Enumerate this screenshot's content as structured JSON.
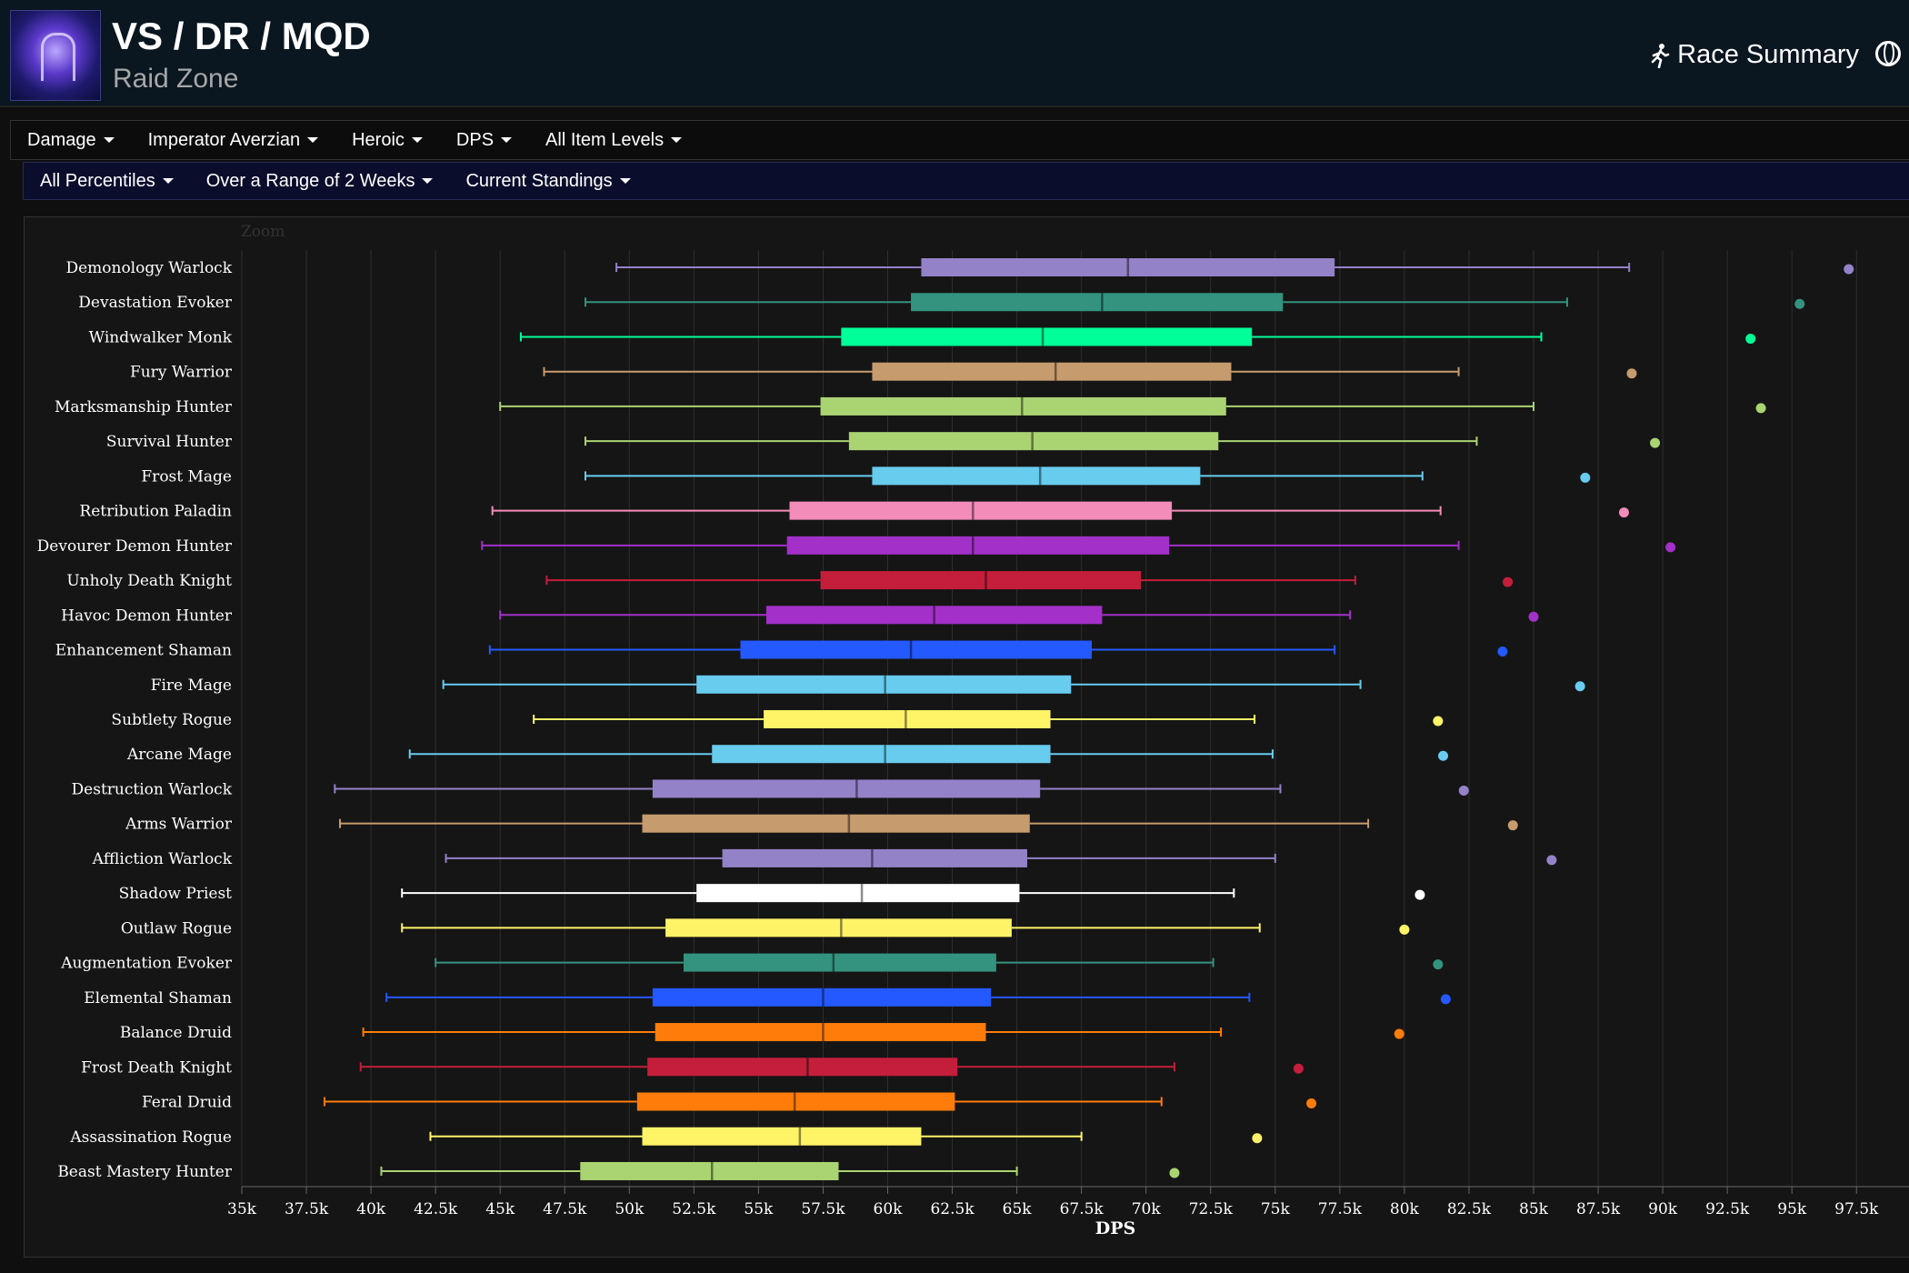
{
  "header": {
    "title": "VS / DR / MQD",
    "subtitle": "Raid Zone",
    "race_summary_label": "Race Summary",
    "zone_icon": "raid-zone-icon",
    "runner_icon": "runner-icon",
    "globe_icon": "globe-icon"
  },
  "filters": {
    "row1": [
      "Damage",
      "Imperator Averzian",
      "Heroic",
      "DPS",
      "All Item Levels"
    ],
    "row2": [
      "All Percentiles",
      "Over a Range of 2 Weeks",
      "Current Standings"
    ]
  },
  "chart_data": {
    "type": "boxplot",
    "title": "",
    "zoom_label": "Zoom",
    "xlabel": "DPS",
    "ylabel": "",
    "xlim": [
      35000,
      98500
    ],
    "x_ticks": [
      35000,
      37500,
      40000,
      42500,
      45000,
      47500,
      50000,
      52500,
      55000,
      57500,
      60000,
      62500,
      65000,
      67500,
      70000,
      72500,
      75000,
      77500,
      80000,
      82500,
      85000,
      87500,
      90000,
      92500,
      95000,
      97500
    ],
    "x_tick_labels": [
      "35k",
      "37.5k",
      "40k",
      "42.5k",
      "45k",
      "47.5k",
      "50k",
      "52.5k",
      "55k",
      "57.5k",
      "60k",
      "62.5k",
      "65k",
      "67.5k",
      "70k",
      "72.5k",
      "75k",
      "77.5k",
      "80k",
      "82.5k",
      "85k",
      "87.5k",
      "90k",
      "92.5k",
      "95k",
      "97.5k"
    ],
    "series": [
      {
        "name": "Demonology Warlock",
        "color": "#9482c9",
        "min": 49500,
        "q1": 61300,
        "median": 69300,
        "q3": 77300,
        "max": 88700,
        "outlier": 97200
      },
      {
        "name": "Devastation Evoker",
        "color": "#33937f",
        "min": 48300,
        "q1": 60900,
        "median": 68300,
        "q3": 75300,
        "max": 86300,
        "outlier": 95300
      },
      {
        "name": "Windwalker Monk",
        "color": "#00ff98",
        "min": 45800,
        "q1": 58200,
        "median": 66000,
        "q3": 74100,
        "max": 85300,
        "outlier": 93400
      },
      {
        "name": "Fury Warrior",
        "color": "#c69b6d",
        "min": 46700,
        "q1": 59400,
        "median": 66500,
        "q3": 73300,
        "max": 82100,
        "outlier": 88800
      },
      {
        "name": "Marksmanship Hunter",
        "color": "#aad372",
        "min": 45000,
        "q1": 57400,
        "median": 65200,
        "q3": 73100,
        "max": 85000,
        "outlier": 93800
      },
      {
        "name": "Survival Hunter",
        "color": "#aad372",
        "min": 48300,
        "q1": 58500,
        "median": 65600,
        "q3": 72800,
        "max": 82800,
        "outlier": 89700
      },
      {
        "name": "Frost Mage",
        "color": "#68ccef",
        "min": 48300,
        "q1": 59400,
        "median": 65900,
        "q3": 72100,
        "max": 80700,
        "outlier": 87000
      },
      {
        "name": "Retribution Paladin",
        "color": "#f48cba",
        "min": 44700,
        "q1": 56200,
        "median": 63300,
        "q3": 71000,
        "max": 81400,
        "outlier": 88500
      },
      {
        "name": "Devourer Demon Hunter",
        "color": "#a330c9",
        "min": 44300,
        "q1": 56100,
        "median": 63300,
        "q3": 70900,
        "max": 82100,
        "outlier": 90300
      },
      {
        "name": "Unholy Death Knight",
        "color": "#c41e3b",
        "min": 46800,
        "q1": 57400,
        "median": 63800,
        "q3": 69800,
        "max": 78100,
        "outlier": 84000
      },
      {
        "name": "Havoc Demon Hunter",
        "color": "#a330c9",
        "min": 45000,
        "q1": 55300,
        "median": 61800,
        "q3": 68300,
        "max": 77900,
        "outlier": 85000
      },
      {
        "name": "Enhancement Shaman",
        "color": "#2359ff",
        "min": 44600,
        "q1": 54300,
        "median": 60900,
        "q3": 67900,
        "max": 77300,
        "outlier": 83800
      },
      {
        "name": "Fire Mage",
        "color": "#68ccef",
        "min": 42800,
        "q1": 52600,
        "median": 59900,
        "q3": 67100,
        "max": 78300,
        "outlier": 86800
      },
      {
        "name": "Subtlety Rogue",
        "color": "#fff468",
        "min": 46300,
        "q1": 55200,
        "median": 60700,
        "q3": 66300,
        "max": 74200,
        "outlier": 81300
      },
      {
        "name": "Arcane Mage",
        "color": "#68ccef",
        "min": 41500,
        "q1": 53200,
        "median": 59900,
        "q3": 66300,
        "max": 74900,
        "outlier": 81500
      },
      {
        "name": "Destruction Warlock",
        "color": "#9482c9",
        "min": 38600,
        "q1": 50900,
        "median": 58800,
        "q3": 65900,
        "max": 75200,
        "outlier": 82300
      },
      {
        "name": "Arms Warrior",
        "color": "#c69b6d",
        "min": 38800,
        "q1": 50500,
        "median": 58500,
        "q3": 65500,
        "max": 78600,
        "outlier": 84200
      },
      {
        "name": "Affliction Warlock",
        "color": "#9482c9",
        "min": 42900,
        "q1": 53600,
        "median": 59400,
        "q3": 65400,
        "max": 75000,
        "outlier": 85700
      },
      {
        "name": "Shadow Priest",
        "color": "#ffffff",
        "min": 41200,
        "q1": 52600,
        "median": 59000,
        "q3": 65100,
        "max": 73400,
        "outlier": 80600
      },
      {
        "name": "Outlaw Rogue",
        "color": "#fff468",
        "min": 41200,
        "q1": 51400,
        "median": 58200,
        "q3": 64800,
        "max": 74400,
        "outlier": 80000
      },
      {
        "name": "Augmentation Evoker",
        "color": "#33937f",
        "min": 42500,
        "q1": 52100,
        "median": 57900,
        "q3": 64200,
        "max": 72600,
        "outlier": 81300
      },
      {
        "name": "Elemental Shaman",
        "color": "#2359ff",
        "min": 40600,
        "q1": 50900,
        "median": 57500,
        "q3": 64000,
        "max": 74000,
        "outlier": 81600
      },
      {
        "name": "Balance Druid",
        "color": "#ff7c0a",
        "min": 39700,
        "q1": 51000,
        "median": 57500,
        "q3": 63800,
        "max": 72900,
        "outlier": 79800
      },
      {
        "name": "Frost Death Knight",
        "color": "#c41e3b",
        "min": 39600,
        "q1": 50700,
        "median": 56900,
        "q3": 62700,
        "max": 71100,
        "outlier": 75900
      },
      {
        "name": "Feral Druid",
        "color": "#ff7c0a",
        "min": 38200,
        "q1": 50300,
        "median": 56400,
        "q3": 62600,
        "max": 70600,
        "outlier": 76400
      },
      {
        "name": "Assassination Rogue",
        "color": "#fff468",
        "min": 42300,
        "q1": 50500,
        "median": 56600,
        "q3": 61300,
        "max": 67500,
        "outlier": 74300
      },
      {
        "name": "Beast Mastery Hunter",
        "color": "#aad372",
        "min": 40400,
        "q1": 48100,
        "median": 53200,
        "q3": 58100,
        "max": 65000,
        "outlier": 71100
      }
    ]
  }
}
